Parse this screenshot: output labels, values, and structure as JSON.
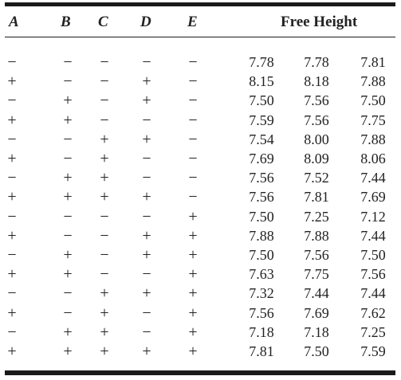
{
  "table": {
    "headers": {
      "a": "A",
      "b": "B",
      "c": "C",
      "d": "D",
      "e": "E",
      "response": "Free Height"
    },
    "rows": [
      {
        "signs": [
          "−",
          "−",
          "−",
          "−",
          "−"
        ],
        "values": [
          "7.78",
          "7.78",
          "7.81"
        ]
      },
      {
        "signs": [
          "+",
          "−",
          "−",
          "+",
          "−"
        ],
        "values": [
          "8.15",
          "8.18",
          "7.88"
        ]
      },
      {
        "signs": [
          "−",
          "+",
          "−",
          "+",
          "−"
        ],
        "values": [
          "7.50",
          "7.56",
          "7.50"
        ]
      },
      {
        "signs": [
          "+",
          "+",
          "−",
          "−",
          "−"
        ],
        "values": [
          "7.59",
          "7.56",
          "7.75"
        ]
      },
      {
        "signs": [
          "−",
          "−",
          "+",
          "+",
          "−"
        ],
        "values": [
          "7.54",
          "8.00",
          "7.88"
        ]
      },
      {
        "signs": [
          "+",
          "−",
          "+",
          "−",
          "−"
        ],
        "values": [
          "7.69",
          "8.09",
          "8.06"
        ]
      },
      {
        "signs": [
          "−",
          "+",
          "+",
          "−",
          "−"
        ],
        "values": [
          "7.56",
          "7.52",
          "7.44"
        ]
      },
      {
        "signs": [
          "+",
          "+",
          "+",
          "+",
          "−"
        ],
        "values": [
          "7.56",
          "7.81",
          "7.69"
        ]
      },
      {
        "signs": [
          "−",
          "−",
          "−",
          "−",
          "+"
        ],
        "values": [
          "7.50",
          "7.25",
          "7.12"
        ]
      },
      {
        "signs": [
          "+",
          "−",
          "−",
          "+",
          "+"
        ],
        "values": [
          "7.88",
          "7.88",
          "7.44"
        ]
      },
      {
        "signs": [
          "−",
          "+",
          "−",
          "+",
          "+"
        ],
        "values": [
          "7.50",
          "7.56",
          "7.50"
        ]
      },
      {
        "signs": [
          "+",
          "+",
          "−",
          "−",
          "+"
        ],
        "values": [
          "7.63",
          "7.75",
          "7.56"
        ]
      },
      {
        "signs": [
          "−",
          "−",
          "+",
          "+",
          "+"
        ],
        "values": [
          "7.32",
          "7.44",
          "7.44"
        ]
      },
      {
        "signs": [
          "+",
          "−",
          "+",
          "−",
          "+"
        ],
        "values": [
          "7.56",
          "7.69",
          "7.62"
        ]
      },
      {
        "signs": [
          "−",
          "+",
          "+",
          "−",
          "+"
        ],
        "values": [
          "7.18",
          "7.18",
          "7.25"
        ]
      },
      {
        "signs": [
          "+",
          "+",
          "+",
          "+",
          "+"
        ],
        "values": [
          "7.81",
          "7.50",
          "7.59"
        ]
      }
    ]
  }
}
